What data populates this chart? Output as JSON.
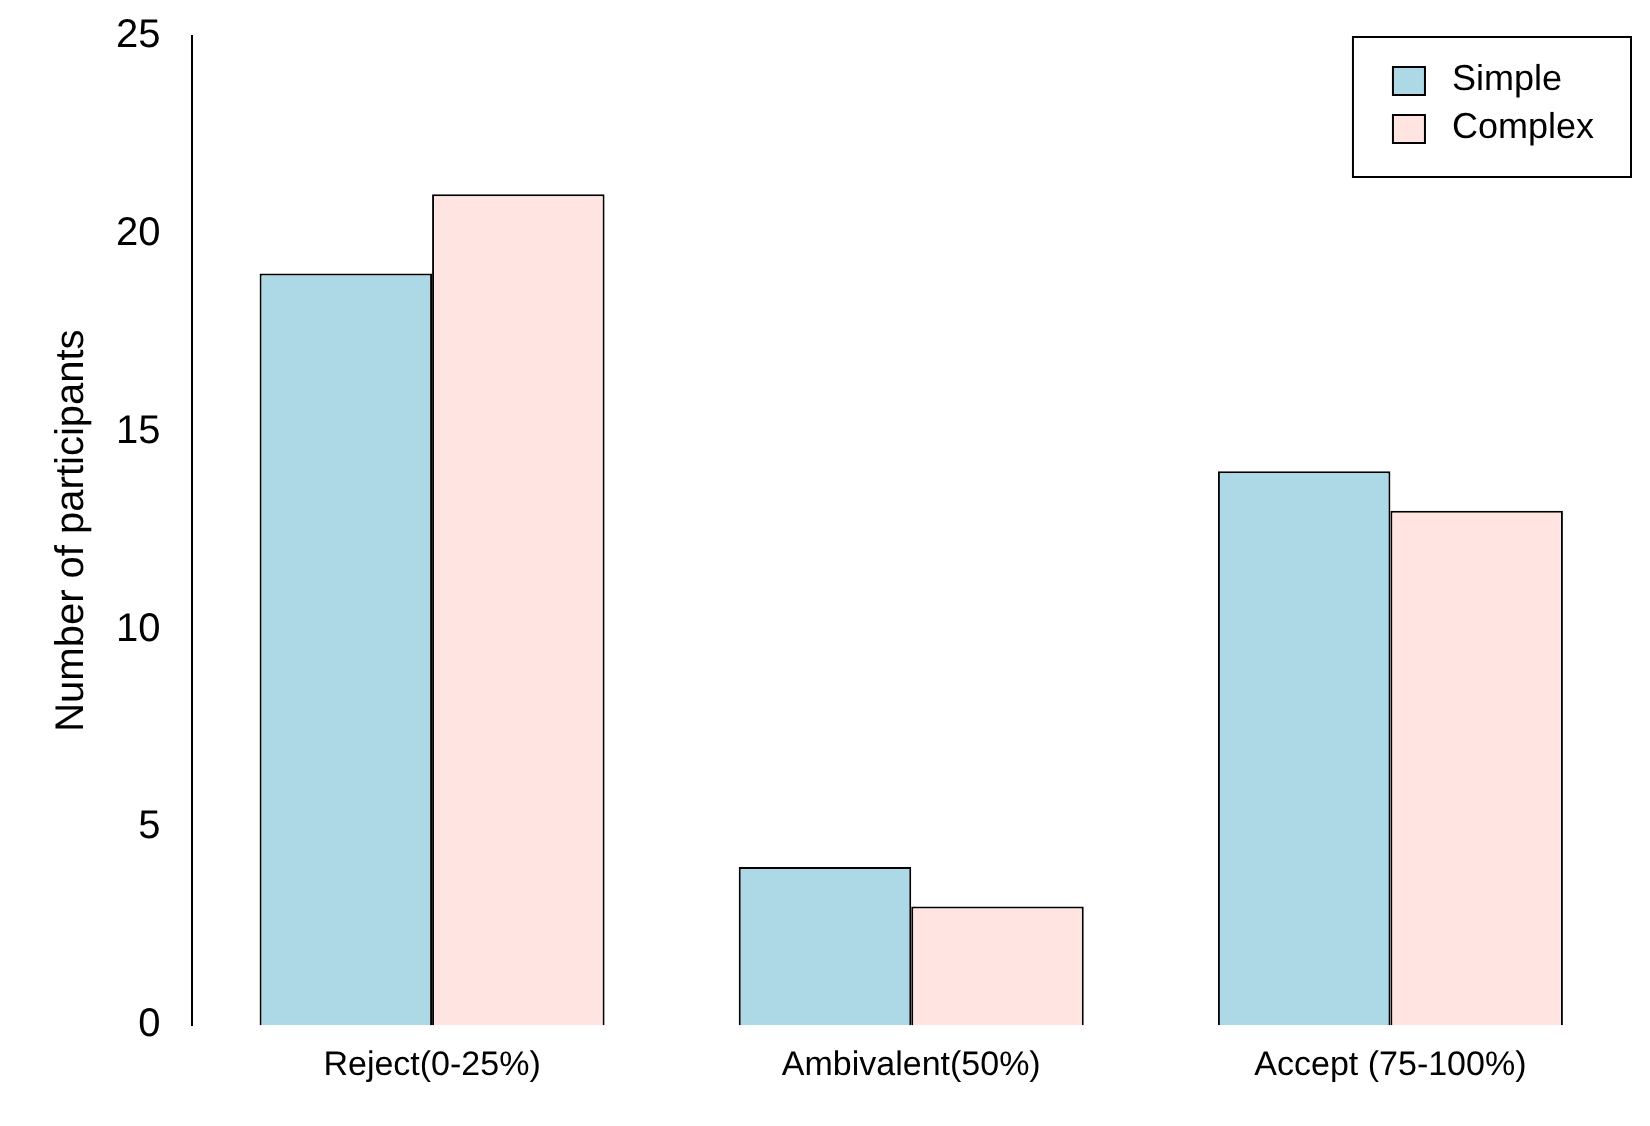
{
  "chart_data": {
    "type": "bar",
    "ylabel": "Number of participants",
    "categories": [
      "Reject(0-25%)",
      "Ambivalent(50%)",
      "Accept (75-100%)"
    ],
    "series": [
      {
        "name": "Simple",
        "color": "#add8e6",
        "values": [
          19,
          4,
          14
        ]
      },
      {
        "name": "Complex",
        "color": "#ffe4e1",
        "values": [
          21,
          3,
          13
        ]
      }
    ],
    "ylim": [
      0,
      25
    ],
    "yticks": [
      0,
      5,
      10,
      15,
      20,
      25
    ],
    "legend": "top right",
    "grid": false
  }
}
